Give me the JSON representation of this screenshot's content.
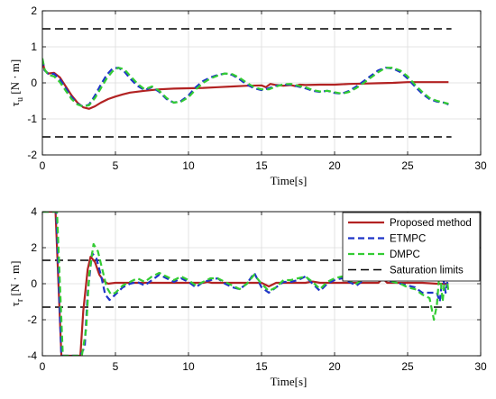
{
  "chart_data": [
    {
      "type": "line",
      "xlabel": "Time[s]",
      "ylabel": "τ_u [N·m]",
      "ylabel_main": "τ",
      "ylabel_sub": "u",
      "ylabel_unit": " [N · m]",
      "xlim": [
        0,
        30
      ],
      "ylim": [
        -2,
        2
      ],
      "xticks": [
        0,
        5,
        10,
        15,
        20,
        25,
        30
      ],
      "yticks": [
        -2,
        -1,
        0,
        1,
        2
      ],
      "grid": true,
      "series": [
        {
          "name": "Proposed method",
          "color": "#b22222",
          "dash": "solid",
          "x": [
            0,
            0.15,
            0.4,
            0.8,
            1.2,
            1.6,
            2.0,
            2.4,
            2.8,
            3.2,
            3.6,
            4.0,
            4.5,
            5.0,
            5.5,
            6.0,
            7.0,
            8.0,
            9.0,
            10.0,
            11.0,
            12.0,
            13.0,
            14.0,
            15.0,
            15.3,
            15.6,
            16.0,
            16.5,
            17.0,
            17.3,
            17.6,
            18.0,
            19.0,
            20.0,
            21.0,
            22.0,
            23.0,
            24.0,
            25.0,
            26.0,
            27.0,
            27.8
          ],
          "y": [
            0.62,
            0.35,
            0.26,
            0.28,
            0.15,
            -0.1,
            -0.35,
            -0.55,
            -0.68,
            -0.72,
            -0.65,
            -0.55,
            -0.45,
            -0.38,
            -0.32,
            -0.27,
            -0.22,
            -0.18,
            -0.16,
            -0.15,
            -0.14,
            -0.12,
            -0.1,
            -0.08,
            -0.07,
            -0.12,
            -0.03,
            -0.06,
            -0.08,
            -0.06,
            -0.09,
            -0.05,
            -0.06,
            -0.05,
            -0.05,
            -0.03,
            -0.02,
            -0.01,
            0.0,
            0.02,
            0.02,
            0.02,
            0.02
          ]
        },
        {
          "name": "ETMPC",
          "color": "#1f35c8",
          "dash": "dashed",
          "x": [
            0,
            0.15,
            0.4,
            0.8,
            1.2,
            1.6,
            2.0,
            2.4,
            2.8,
            3.2,
            3.6,
            4.0,
            4.4,
            4.8,
            5.2,
            5.6,
            6.0,
            6.5,
            7.0,
            7.5,
            8.0,
            8.5,
            9.0,
            9.5,
            10.0,
            10.5,
            11.0,
            11.5,
            12.0,
            12.5,
            13.0,
            13.5,
            14.0,
            14.5,
            15.0,
            15.5,
            16.0,
            16.5,
            17.0,
            17.5,
            18.0,
            18.5,
            19.0,
            19.5,
            20.0,
            20.5,
            21.0,
            21.5,
            22.0,
            22.5,
            23.0,
            23.5,
            24.0,
            24.5,
            25.0,
            25.5,
            26.0,
            26.5,
            27.0,
            27.5,
            27.8
          ],
          "y": [
            0.65,
            0.35,
            0.25,
            0.25,
            0.1,
            -0.15,
            -0.4,
            -0.58,
            -0.66,
            -0.6,
            -0.35,
            -0.05,
            0.22,
            0.4,
            0.42,
            0.32,
            0.12,
            -0.08,
            -0.2,
            -0.12,
            -0.25,
            -0.45,
            -0.55,
            -0.5,
            -0.35,
            -0.12,
            0.05,
            0.15,
            0.22,
            0.26,
            0.22,
            0.1,
            -0.05,
            -0.15,
            -0.2,
            -0.15,
            -0.08,
            -0.05,
            -0.05,
            -0.1,
            -0.15,
            -0.22,
            -0.25,
            -0.22,
            -0.28,
            -0.3,
            -0.22,
            -0.1,
            0.05,
            0.2,
            0.35,
            0.42,
            0.4,
            0.3,
            0.12,
            -0.1,
            -0.3,
            -0.45,
            -0.52,
            -0.55,
            -0.6
          ]
        },
        {
          "name": "DMPC",
          "color": "#33cc33",
          "dash": "dashed",
          "x": [
            0,
            0.15,
            0.4,
            0.8,
            1.2,
            1.6,
            2.0,
            2.4,
            2.8,
            3.2,
            3.6,
            4.0,
            4.4,
            4.8,
            5.2,
            5.6,
            6.0,
            6.5,
            7.0,
            7.5,
            8.0,
            8.5,
            9.0,
            9.5,
            10.0,
            10.5,
            11.0,
            11.5,
            12.0,
            12.5,
            13.0,
            13.5,
            14.0,
            14.5,
            15.0,
            15.5,
            16.0,
            16.5,
            17.0,
            17.5,
            18.0,
            18.5,
            19.0,
            19.5,
            20.0,
            20.5,
            21.0,
            21.5,
            22.0,
            22.5,
            23.0,
            23.5,
            24.0,
            24.5,
            25.0,
            25.5,
            26.0,
            26.5,
            27.0,
            27.5,
            27.8
          ],
          "y": [
            0.68,
            0.38,
            0.22,
            0.18,
            0.02,
            -0.22,
            -0.45,
            -0.6,
            -0.66,
            -0.62,
            -0.42,
            -0.15,
            0.12,
            0.32,
            0.42,
            0.38,
            0.2,
            -0.02,
            -0.18,
            -0.1,
            -0.22,
            -0.42,
            -0.55,
            -0.52,
            -0.4,
            -0.18,
            0.0,
            0.12,
            0.2,
            0.26,
            0.24,
            0.14,
            0.0,
            -0.12,
            -0.18,
            -0.18,
            -0.1,
            -0.04,
            -0.03,
            -0.08,
            -0.12,
            -0.2,
            -0.24,
            -0.22,
            -0.26,
            -0.3,
            -0.25,
            -0.14,
            0.0,
            0.15,
            0.3,
            0.42,
            0.42,
            0.34,
            0.18,
            -0.05,
            -0.25,
            -0.42,
            -0.5,
            -0.55,
            -0.58
          ]
        },
        {
          "name": "Saturation limits",
          "color": "#000000",
          "dash": "dashed",
          "x": [
            0,
            28
          ],
          "y": [
            1.5,
            1.5
          ]
        },
        {
          "name": "Saturation limits",
          "color": "#000000",
          "dash": "dashed",
          "x": [
            0,
            28
          ],
          "y": [
            -1.5,
            -1.5
          ]
        }
      ]
    },
    {
      "type": "line",
      "xlabel": "Time[s]",
      "ylabel": "τ_r [N·m]",
      "ylabel_main": "τ",
      "ylabel_sub": "r",
      "ylabel_unit": " [N · m]",
      "xlim": [
        0,
        30
      ],
      "ylim": [
        -4,
        4
      ],
      "xticks": [
        0,
        5,
        10,
        15,
        20,
        25,
        30
      ],
      "yticks": [
        -4,
        -2,
        0,
        2,
        4
      ],
      "grid": true,
      "legend": {
        "placement": "top-right",
        "entries": [
          "Proposed method",
          "ETMPC",
          "DMPC",
          "Saturation limits"
        ]
      },
      "series": [
        {
          "name": "Proposed method",
          "color": "#b22222",
          "dash": "solid",
          "x": [
            0,
            0.9,
            1.3,
            1.6,
            2.6,
            2.8,
            3.1,
            3.3,
            3.6,
            3.9,
            4.2,
            4.5,
            5.0,
            5.5,
            6.0,
            7.0,
            8.0,
            9.0,
            10.0,
            11.0,
            11.3,
            11.6,
            12.0,
            13.0,
            14.0,
            15.0,
            15.5,
            16.0,
            17.0,
            18.0,
            18.5,
            19.0,
            20.0,
            21.0,
            22.0,
            23.0,
            23.3,
            23.6,
            24.0,
            25.0,
            26.0,
            27.0,
            27.8
          ],
          "y": [
            4,
            4,
            -4,
            -4,
            -4,
            -1.5,
            0.8,
            1.5,
            1.2,
            0.5,
            0.15,
            0.0,
            0.05,
            0.05,
            0.05,
            0.05,
            0.05,
            0.05,
            0.05,
            0.05,
            0.1,
            0.05,
            0.05,
            0.05,
            0.05,
            0.05,
            -0.15,
            0.05,
            0.05,
            0.05,
            0.12,
            0.05,
            0.05,
            0.05,
            0.05,
            0.05,
            0.3,
            0.05,
            0.05,
            0.05,
            0.05,
            0.0,
            0.0
          ]
        },
        {
          "name": "ETMPC",
          "color": "#1f35c8",
          "dash": "dashed",
          "x": [
            0,
            0.95,
            1.3,
            1.6,
            2.6,
            2.9,
            3.1,
            3.4,
            3.7,
            4.0,
            4.3,
            4.6,
            5.0,
            5.5,
            6.0,
            6.5,
            7.0,
            7.5,
            8.0,
            8.5,
            9.0,
            9.5,
            10.0,
            10.5,
            11.0,
            11.5,
            12.0,
            12.5,
            13.0,
            13.5,
            14.0,
            14.5,
            15.0,
            15.5,
            16.0,
            16.5,
            17.0,
            17.5,
            18.0,
            18.5,
            19.0,
            19.5,
            20.0,
            20.5,
            21.0,
            21.5,
            22.0,
            22.5,
            23.0,
            23.5,
            24.0,
            24.5,
            25.0,
            25.5,
            26.0,
            26.5,
            27.0,
            27.2,
            27.4,
            27.6,
            27.8
          ],
          "y": [
            4,
            4,
            -4,
            -4,
            -4,
            -3.5,
            -0.5,
            1.7,
            1.4,
            0.5,
            -0.6,
            -0.9,
            -0.6,
            -0.2,
            0.0,
            0.1,
            -0.1,
            0.2,
            0.5,
            0.3,
            0.1,
            0.3,
            0.1,
            -0.2,
            0.1,
            0.2,
            0.3,
            0.0,
            -0.2,
            -0.3,
            0.0,
            0.6,
            -0.2,
            -0.5,
            -0.2,
            0.1,
            0.1,
            0.2,
            0.4,
            0.0,
            -0.4,
            0.0,
            0.2,
            0.3,
            0.1,
            -0.1,
            0.2,
            0.4,
            0.6,
            0.2,
            0.1,
            0.0,
            -0.1,
            -0.2,
            -0.5,
            -0.5,
            -0.5,
            -1.0,
            0.5,
            -0.5,
            0.5
          ]
        },
        {
          "name": "DMPC",
          "color": "#33cc33",
          "dash": "dashed",
          "x": [
            0,
            1.0,
            1.4,
            1.7,
            2.7,
            3.0,
            3.2,
            3.5,
            3.8,
            4.1,
            4.4,
            4.7,
            5.0,
            5.5,
            6.0,
            6.5,
            7.0,
            7.5,
            8.0,
            8.5,
            9.0,
            9.5,
            10.0,
            10.5,
            11.0,
            11.5,
            12.0,
            12.5,
            13.0,
            13.5,
            14.0,
            14.5,
            15.0,
            15.5,
            16.0,
            16.5,
            17.0,
            17.5,
            18.0,
            18.5,
            19.0,
            19.5,
            20.0,
            20.5,
            21.0,
            21.5,
            22.0,
            22.5,
            23.0,
            23.5,
            24.0,
            24.5,
            25.0,
            25.5,
            26.0,
            26.5,
            26.8,
            27.0,
            27.2,
            27.4,
            27.6,
            27.8
          ],
          "y": [
            4,
            4,
            -4,
            -4,
            -4,
            -2.5,
            0.5,
            2.2,
            1.8,
            0.8,
            -0.2,
            -0.6,
            -0.5,
            -0.1,
            0.1,
            0.3,
            0.1,
            0.4,
            0.6,
            0.4,
            0.2,
            0.4,
            0.2,
            -0.1,
            0.1,
            0.3,
            0.3,
            0.1,
            -0.1,
            -0.3,
            0.0,
            0.5,
            0.0,
            -0.4,
            -0.2,
            0.2,
            0.2,
            0.3,
            0.4,
            0.1,
            -0.3,
            0.1,
            0.3,
            0.4,
            0.2,
            0.0,
            0.3,
            0.4,
            0.5,
            0.3,
            0.1,
            0.0,
            -0.2,
            -0.3,
            -0.6,
            -0.8,
            -2.0,
            -1.2,
            0.8,
            -1.0,
            0.9,
            -0.5
          ]
        },
        {
          "name": "Saturation limits",
          "color": "#000000",
          "dash": "dashed",
          "x": [
            0,
            28
          ],
          "y": [
            1.3,
            1.3
          ]
        },
        {
          "name": "Saturation limits",
          "color": "#000000",
          "dash": "dashed",
          "x": [
            0,
            28
          ],
          "y": [
            -1.3,
            -1.3
          ]
        }
      ]
    }
  ]
}
